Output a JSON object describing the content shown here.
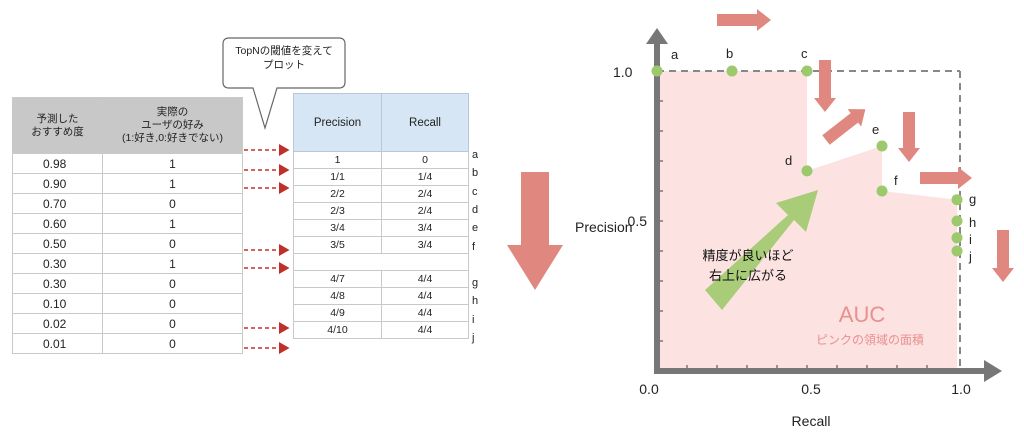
{
  "callout": {
    "line1": "TopNの閾値を変えて",
    "line2": "プロット"
  },
  "pred_table": {
    "headers": [
      "予測した\nおすすめ度",
      "実際の\nユーザの好み\n(1:好き,0:好きでない)"
    ],
    "header1_lines": [
      "予測した",
      "おすすめ度"
    ],
    "header2_lines": [
      "実際の",
      "ユーザの好み",
      "(1:好き,0:好きでない)"
    ],
    "rows": [
      {
        "score": "0.98",
        "label": "1"
      },
      {
        "score": "0.90",
        "label": "1"
      },
      {
        "score": "0.70",
        "label": "0"
      },
      {
        "score": "0.60",
        "label": "1"
      },
      {
        "score": "0.50",
        "label": "0"
      },
      {
        "score": "0.30",
        "label": "1"
      },
      {
        "score": "0.30",
        "label": "0"
      },
      {
        "score": "0.10",
        "label": "0"
      },
      {
        "score": "0.02",
        "label": "0"
      },
      {
        "score": "0.01",
        "label": "0"
      }
    ]
  },
  "pr_table": {
    "headers": [
      "Precision",
      "Recall"
    ],
    "rows": [
      {
        "precision": "1",
        "recall": "0",
        "letter": "a"
      },
      {
        "precision": "1/1",
        "recall": "1/4",
        "letter": "b"
      },
      {
        "precision": "2/2",
        "recall": "2/4",
        "letter": "c"
      },
      {
        "precision": "2/3",
        "recall": "2/4",
        "letter": "d"
      },
      {
        "precision": "3/4",
        "recall": "3/4",
        "letter": "e"
      },
      {
        "precision": "3/5",
        "recall": "3/4",
        "letter": "f"
      },
      {
        "precision": "",
        "recall": "",
        "letter": ""
      },
      {
        "precision": "4/7",
        "recall": "4/4",
        "letter": "g"
      },
      {
        "precision": "4/8",
        "recall": "4/4",
        "letter": "h"
      },
      {
        "precision": "4/9",
        "recall": "4/4",
        "letter": "i"
      },
      {
        "precision": "4/10",
        "recall": "4/4",
        "letter": "j"
      }
    ]
  },
  "plot": {
    "y_axis_label": "Precision",
    "x_axis_label": "Recall",
    "y_ticks": [
      "1.0",
      "0.5"
    ],
    "x_ticks": [
      "0.0",
      "0.5",
      "1.0"
    ],
    "annotation_lines": [
      "精度が良いほど",
      "右上に広がる"
    ],
    "auc_title": "AUC",
    "auc_subtitle": "ピンクの領域の面積",
    "colors": {
      "pink_area": "#fde2e2",
      "point": "#9cc96b",
      "arrow": "#e08880",
      "green_arrow": "#a8cc78",
      "auc_text": "#e89090"
    },
    "points": [
      {
        "label": "a",
        "recall": 0.0,
        "precision": 1.0
      },
      {
        "label": "b",
        "recall": 0.25,
        "precision": 1.0
      },
      {
        "label": "c",
        "recall": 0.5,
        "precision": 1.0
      },
      {
        "label": "d",
        "recall": 0.5,
        "precision": 0.667
      },
      {
        "label": "e",
        "recall": 0.75,
        "precision": 0.75
      },
      {
        "label": "f",
        "recall": 0.75,
        "precision": 0.6
      },
      {
        "label": "g",
        "recall": 1.0,
        "precision": 0.571
      },
      {
        "label": "h",
        "recall": 1.0,
        "precision": 0.5
      },
      {
        "label": "i",
        "recall": 1.0,
        "precision": 0.444
      },
      {
        "label": "j",
        "recall": 1.0,
        "precision": 0.4
      }
    ]
  }
}
